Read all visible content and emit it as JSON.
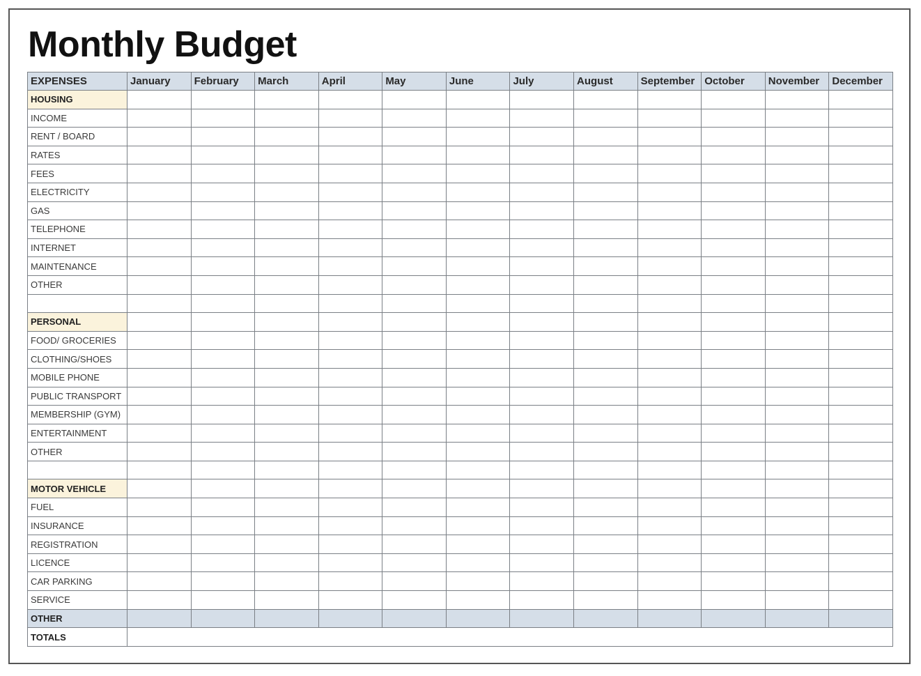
{
  "title": "Monthly Budget",
  "header": {
    "first": "EXPENSES",
    "months": [
      "January",
      "February",
      "March",
      "April",
      "May",
      "June",
      "July",
      "August",
      "September",
      "October",
      "November",
      "December"
    ]
  },
  "rows": [
    {
      "label": "HOUSING",
      "type": "category"
    },
    {
      "label": "INCOME"
    },
    {
      "label": "RENT / BOARD"
    },
    {
      "label": "RATES"
    },
    {
      "label": "FEES"
    },
    {
      "label": "ELECTRICITY"
    },
    {
      "label": "GAS"
    },
    {
      "label": "TELEPHONE"
    },
    {
      "label": "INTERNET"
    },
    {
      "label": "MAINTENANCE"
    },
    {
      "label": "OTHER"
    },
    {
      "label": ""
    },
    {
      "label": "PERSONAL",
      "type": "category"
    },
    {
      "label": "FOOD/ GROCERIES"
    },
    {
      "label": "CLOTHING/SHOES"
    },
    {
      "label": "MOBILE PHONE"
    },
    {
      "label": "PUBLIC TRANSPORT"
    },
    {
      "label": "MEMBERSHIP (GYM)"
    },
    {
      "label": "ENTERTAINMENT"
    },
    {
      "label": "OTHER"
    },
    {
      "label": ""
    },
    {
      "label": "MOTOR VEHICLE",
      "type": "category"
    },
    {
      "label": "FUEL"
    },
    {
      "label": "INSURANCE"
    },
    {
      "label": "REGISTRATION"
    },
    {
      "label": "LICENCE"
    },
    {
      "label": "CAR PARKING"
    },
    {
      "label": "SERVICE"
    },
    {
      "label": "OTHER",
      "type": "other"
    },
    {
      "label": "TOTALS",
      "type": "totals"
    }
  ],
  "colors": {
    "header_bg": "#d5dee8",
    "category_bg": "#fbf3dc"
  }
}
